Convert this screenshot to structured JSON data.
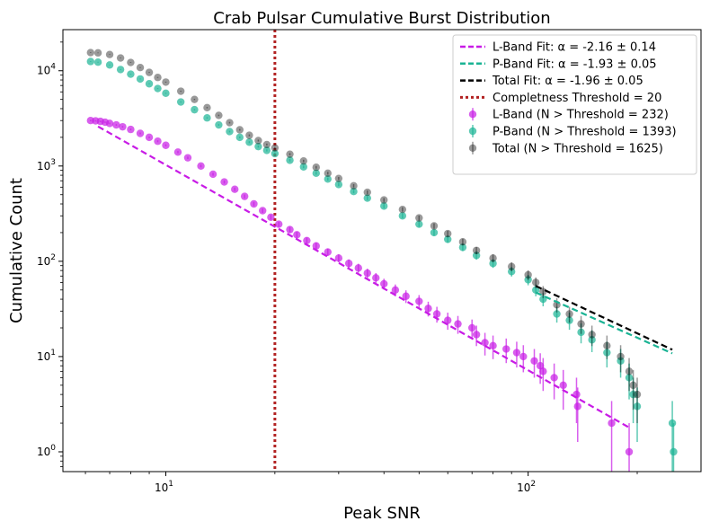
{
  "chart_data": {
    "type": "scatter",
    "title": "Crab Pulsar Cumulative Burst Distribution",
    "xlabel": "Peak SNR",
    "ylabel": "Cumulative Count",
    "xscale": "log",
    "yscale": "log",
    "xlim": [
      5.2,
      300
    ],
    "ylim": [
      0.62,
      27000
    ],
    "x_ticks": [
      {
        "value": 10,
        "base": "10",
        "exp": "1"
      },
      {
        "value": 100,
        "base": "10",
        "exp": "2"
      }
    ],
    "y_ticks": [
      {
        "value": 1,
        "base": "10",
        "exp": "0"
      },
      {
        "value": 10,
        "base": "10",
        "exp": "1"
      },
      {
        "value": 100,
        "base": "10",
        "exp": "2"
      },
      {
        "value": 1000,
        "base": "10",
        "exp": "3"
      },
      {
        "value": 10000,
        "base": "10",
        "exp": "4"
      }
    ],
    "legend_position": "top-right",
    "threshold": {
      "x": 20,
      "color": "#b22222",
      "label": "Completness Threshold = 20"
    },
    "fits": [
      {
        "label": "L-Band Fit: α = -2.16 ± 0.14",
        "color": "#c81be6",
        "x": [
          6.5,
          190
        ],
        "y": [
          2600,
          1.8
        ]
      },
      {
        "label": "P-Band Fit: α = -1.93 ± 0.05",
        "color": "#1ab394",
        "x": [
          105,
          250
        ],
        "y": [
          47,
          10.8
        ]
      },
      {
        "label": "Total Fit: α = -1.96 ± 0.05",
        "color": "#000000",
        "x": [
          105,
          250
        ],
        "y": [
          55,
          11.8
        ]
      }
    ],
    "series": [
      {
        "label": "L-Band (N > Threshold = 232)",
        "color": "#c81be6",
        "points": [
          [
            6.2,
            3000
          ],
          [
            6.4,
            2980
          ],
          [
            6.6,
            2940
          ],
          [
            6.8,
            2880
          ],
          [
            7.0,
            2800
          ],
          [
            7.3,
            2700
          ],
          [
            7.6,
            2580
          ],
          [
            8.0,
            2420
          ],
          [
            8.5,
            2200
          ],
          [
            9.0,
            2000
          ],
          [
            9.5,
            1820
          ],
          [
            10.0,
            1650
          ],
          [
            10.8,
            1400
          ],
          [
            11.5,
            1220
          ],
          [
            12.5,
            1000
          ],
          [
            13.5,
            820
          ],
          [
            14.5,
            680
          ],
          [
            15.5,
            570
          ],
          [
            16.5,
            480
          ],
          [
            17.5,
            400
          ],
          [
            18.5,
            340
          ],
          [
            19.5,
            290
          ],
          [
            20.5,
            245
          ],
          [
            22,
            215
          ],
          [
            23,
            190
          ],
          [
            24.5,
            165
          ],
          [
            26,
            145
          ],
          [
            28,
            125
          ],
          [
            30,
            108
          ],
          [
            32,
            95
          ],
          [
            34,
            85
          ],
          [
            36,
            75
          ],
          [
            38,
            67
          ],
          [
            40,
            58
          ],
          [
            43,
            50
          ],
          [
            46,
            43
          ],
          [
            50,
            38
          ],
          [
            53,
            32
          ],
          [
            56,
            28
          ],
          [
            60,
            24
          ],
          [
            64,
            22
          ],
          [
            70,
            20
          ],
          [
            72,
            17
          ],
          [
            76,
            14
          ],
          [
            80,
            13
          ],
          [
            87,
            12
          ],
          [
            93,
            11
          ],
          [
            97,
            10
          ],
          [
            104,
            9
          ],
          [
            108,
            8
          ],
          [
            110,
            7
          ],
          [
            118,
            6
          ],
          [
            125,
            5
          ],
          [
            136,
            4
          ],
          [
            137,
            3
          ],
          [
            170,
            2
          ],
          [
            190,
            1
          ]
        ]
      },
      {
        "label": "P-Band (N > Threshold = 1393)",
        "color": "#1ab394",
        "points": [
          [
            6.2,
            12500
          ],
          [
            6.5,
            12300
          ],
          [
            7.0,
            11500
          ],
          [
            7.5,
            10300
          ],
          [
            8.0,
            9200
          ],
          [
            8.5,
            8200
          ],
          [
            9.0,
            7300
          ],
          [
            9.5,
            6500
          ],
          [
            10,
            5800
          ],
          [
            11,
            4700
          ],
          [
            12,
            3900
          ],
          [
            13,
            3200
          ],
          [
            14,
            2700
          ],
          [
            15,
            2300
          ],
          [
            16,
            2000
          ],
          [
            17,
            1780
          ],
          [
            18,
            1600
          ],
          [
            19,
            1460
          ],
          [
            20,
            1350
          ],
          [
            22,
            1150
          ],
          [
            24,
            980
          ],
          [
            26,
            840
          ],
          [
            28,
            730
          ],
          [
            30,
            640
          ],
          [
            33,
            540
          ],
          [
            36,
            460
          ],
          [
            40,
            380
          ],
          [
            45,
            300
          ],
          [
            50,
            245
          ],
          [
            55,
            200
          ],
          [
            60,
            170
          ],
          [
            66,
            140
          ],
          [
            72,
            115
          ],
          [
            80,
            95
          ],
          [
            90,
            78
          ],
          [
            100,
            64
          ],
          [
            105,
            50
          ],
          [
            110,
            40
          ],
          [
            120,
            28
          ],
          [
            130,
            24
          ],
          [
            140,
            18
          ],
          [
            150,
            15
          ],
          [
            165,
            11
          ],
          [
            180,
            9
          ],
          [
            190,
            6
          ],
          [
            195,
            4
          ],
          [
            200,
            3
          ],
          [
            250,
            2
          ],
          [
            252,
            1
          ]
        ]
      },
      {
        "label": "Total (N > Threshold = 1625)",
        "color": "#000000",
        "points": [
          [
            6.2,
            15500
          ],
          [
            6.5,
            15400
          ],
          [
            7.0,
            14800
          ],
          [
            7.5,
            13600
          ],
          [
            8.0,
            12200
          ],
          [
            8.5,
            10800
          ],
          [
            9.0,
            9600
          ],
          [
            9.5,
            8500
          ],
          [
            10,
            7600
          ],
          [
            11,
            6100
          ],
          [
            12,
            5000
          ],
          [
            13,
            4100
          ],
          [
            14,
            3400
          ],
          [
            15,
            2850
          ],
          [
            16,
            2400
          ],
          [
            17,
            2100
          ],
          [
            18,
            1850
          ],
          [
            19,
            1680
          ],
          [
            20,
            1550
          ],
          [
            22,
            1330
          ],
          [
            24,
            1130
          ],
          [
            26,
            970
          ],
          [
            28,
            840
          ],
          [
            30,
            740
          ],
          [
            33,
            620
          ],
          [
            36,
            530
          ],
          [
            40,
            440
          ],
          [
            45,
            350
          ],
          [
            50,
            285
          ],
          [
            55,
            235
          ],
          [
            60,
            195
          ],
          [
            66,
            160
          ],
          [
            72,
            130
          ],
          [
            80,
            108
          ],
          [
            90,
            88
          ],
          [
            100,
            72
          ],
          [
            105,
            60
          ],
          [
            110,
            48
          ],
          [
            120,
            35
          ],
          [
            130,
            28
          ],
          [
            140,
            22
          ],
          [
            150,
            17
          ],
          [
            165,
            13
          ],
          [
            180,
            10
          ],
          [
            190,
            7
          ],
          [
            195,
            5
          ],
          [
            200,
            4
          ]
        ]
      }
    ]
  }
}
